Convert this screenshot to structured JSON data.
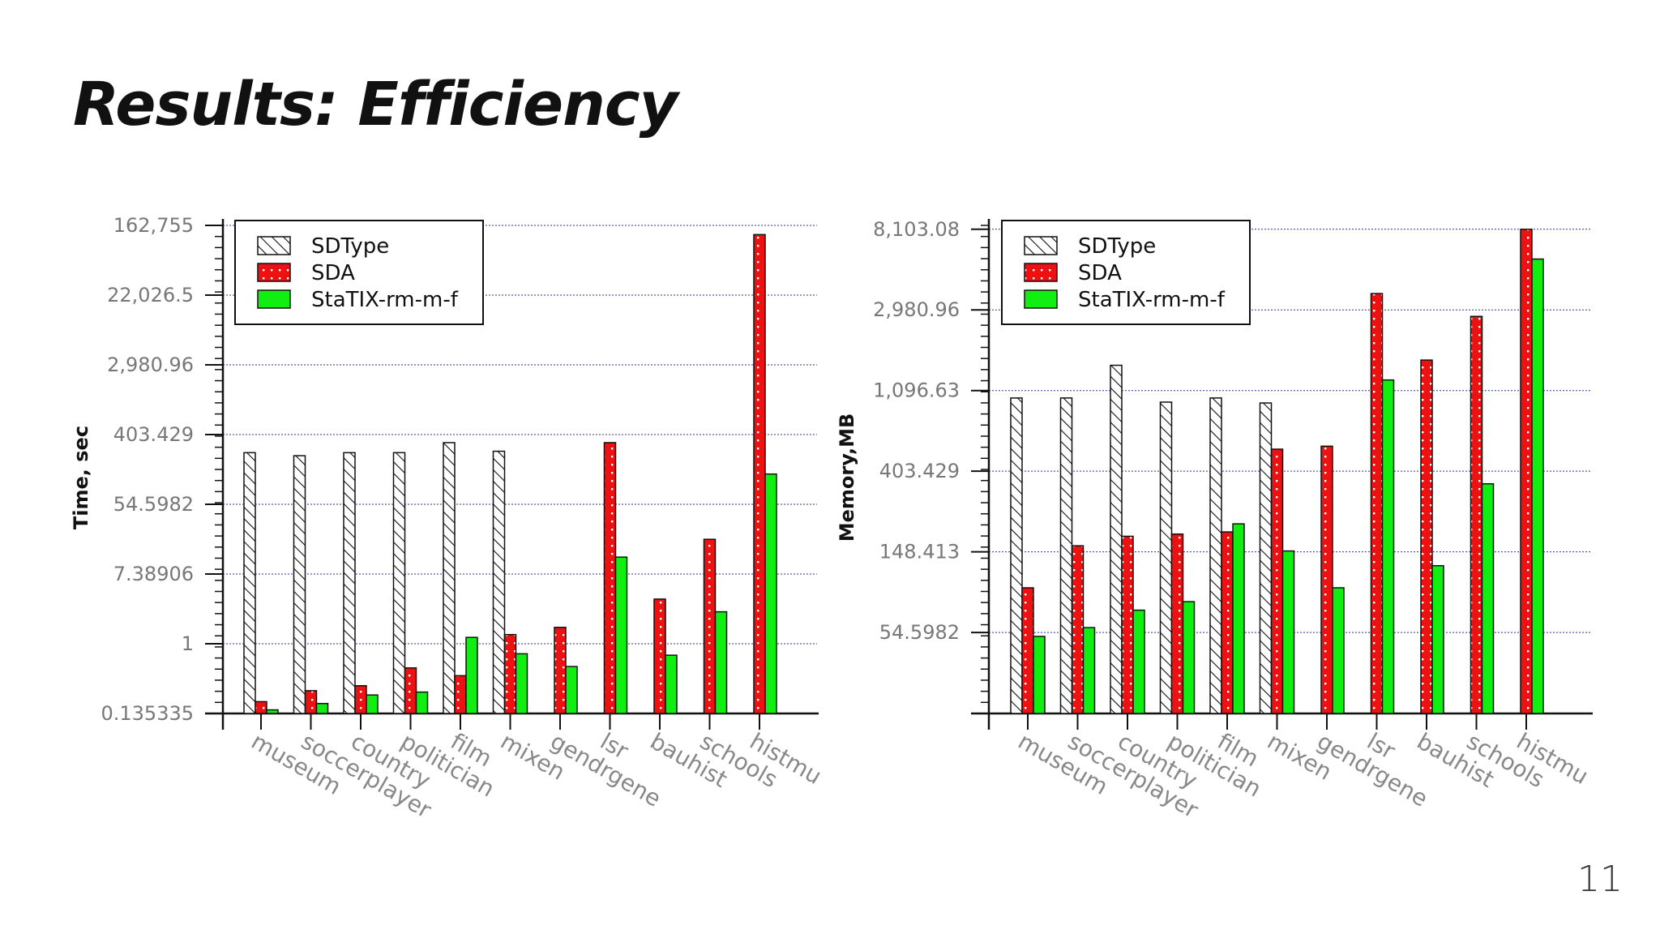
{
  "slide": {
    "title": "Results: Efficiency",
    "page_number": "11"
  },
  "colors": {
    "SDType": "#ffffff",
    "SDA": "#ee1111",
    "StaTIX-rm-m-f": "#11ee11",
    "grid": "#3333aa"
  },
  "chart_data": [
    {
      "type": "bar",
      "scale": "log",
      "ylabel": "Time, sec",
      "xlabel": "",
      "title": "",
      "grid": true,
      "legend": "top-left",
      "ylim": [
        0.135335,
        162755
      ],
      "yticks": [
        {
          "value": 0.135335,
          "label": "0.135335"
        },
        {
          "value": 1,
          "label": "1"
        },
        {
          "value": 7.38906,
          "label": "7.38906"
        },
        {
          "value": 54.5982,
          "label": "54.5982"
        },
        {
          "value": 403.429,
          "label": "403.429"
        },
        {
          "value": 2980.96,
          "label": "2,980.96"
        },
        {
          "value": 22026.5,
          "label": "22,026.5"
        },
        {
          "value": 162755,
          "label": "162,755"
        }
      ],
      "categories": [
        "museum",
        "soccerplayer",
        "country",
        "politician",
        "film",
        "mixen",
        "gendrgene",
        "lsr",
        "bauhist",
        "schools",
        "histmu"
      ],
      "series": [
        {
          "name": "SDType",
          "values": [
            240,
            220,
            240,
            240,
            320,
            250,
            null,
            null,
            null,
            null,
            null
          ]
        },
        {
          "name": "SDA",
          "values": [
            0.19,
            0.26,
            0.3,
            0.5,
            0.4,
            1.3,
            1.6,
            320,
            3.6,
            20,
            125000
          ]
        },
        {
          "name": "StaTIX-rm-m-f",
          "values": [
            0.15,
            0.18,
            0.23,
            0.25,
            1.2,
            0.75,
            0.52,
            12,
            0.72,
            2.5,
            130
          ]
        }
      ]
    },
    {
      "type": "bar",
      "scale": "log",
      "ylabel": "Memory,MB",
      "xlabel": "",
      "title": "",
      "grid": true,
      "legend": "top-left",
      "ylim": [
        20,
        8500
      ],
      "yticks": [
        {
          "value": 54.5982,
          "label": "54.5982"
        },
        {
          "value": 148.413,
          "label": "148.413"
        },
        {
          "value": 403.429,
          "label": "403.429"
        },
        {
          "value": 1096.63,
          "label": "1,096.63"
        },
        {
          "value": 2980.96,
          "label": "2,980.96"
        },
        {
          "value": 8103.08,
          "label": "8,103.08"
        }
      ],
      "categories": [
        "museum",
        "soccerplayer",
        "country",
        "politician",
        "film",
        "mixen",
        "gendrgene",
        "lsr",
        "bauhist",
        "schools",
        "histmu"
      ],
      "series": [
        {
          "name": "SDType",
          "values": [
            1000,
            1000,
            1500,
            950,
            1000,
            940,
            null,
            null,
            null,
            null,
            null
          ]
        },
        {
          "name": "SDA",
          "values": [
            95,
            160,
            180,
            185,
            190,
            530,
            550,
            3650,
            1600,
            2750,
            8100
          ]
        },
        {
          "name": "StaTIX-rm-m-f",
          "values": [
            52,
            58,
            72,
            80,
            210,
            150,
            95,
            1250,
            125,
            345,
            5600
          ]
        }
      ]
    }
  ]
}
